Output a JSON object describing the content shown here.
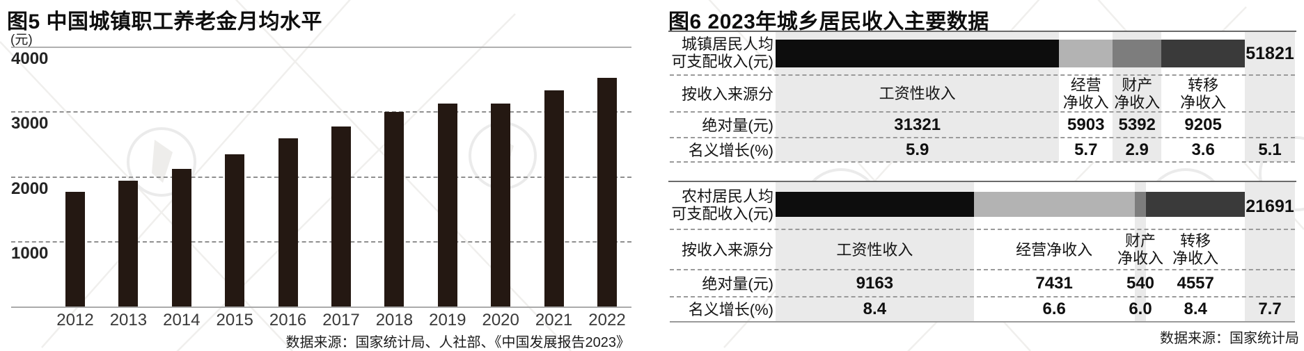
{
  "chart_data": [
    {
      "id": "fig5",
      "type": "bar",
      "title": "图5 中国城镇职工养老金月均水平",
      "unit_label": "(元)",
      "categories": [
        "2012",
        "2013",
        "2014",
        "2015",
        "2016",
        "2017",
        "2018",
        "2019",
        "2020",
        "2021",
        "2022"
      ],
      "values": [
        1770,
        1940,
        2120,
        2350,
        2590,
        2780,
        3000,
        3130,
        3130,
        3330,
        3530
      ],
      "ylim": [
        0,
        4000
      ],
      "yticks": [
        4000,
        3000,
        2000,
        1000
      ],
      "grid": "horizontal dashed, top 4000 line solid",
      "legend": "none",
      "bar_color": "#241812",
      "source": "数据来源：国家统计局、人社部、《中国发展报告2023》"
    },
    {
      "id": "fig6",
      "type": "table",
      "title": "图6 2023年城乡居民收入主要数据",
      "source": "数据来源：国家统计局",
      "blocks": [
        {
          "id": "urban",
          "label_lines": [
            "城镇居民人均",
            "可支配收入(元)"
          ],
          "row_labels": {
            "by_source": "按收入来源分",
            "absolute": "绝对量(元)",
            "nominal_growth": "名义增长(%)"
          },
          "total_value": "51821",
          "total_growth": "5.1",
          "columns": [
            {
              "header_lines": [
                "工资性收入"
              ],
              "absolute": "31321",
              "growth": "5.9",
              "segment_color": "#0d0d0d",
              "band_color": "#eaeaea"
            },
            {
              "header_lines": [
                "经营",
                "净收入"
              ],
              "absolute": "5903",
              "growth": "5.7",
              "segment_color": "#b3b3b3",
              "band_color": "#ffffff"
            },
            {
              "header_lines": [
                "财产",
                "净收入"
              ],
              "absolute": "5392",
              "growth": "2.9",
              "segment_color": "#7d7d7d",
              "band_color": "#eaeaea"
            },
            {
              "header_lines": [
                "转移",
                "净收入"
              ],
              "absolute": "9205",
              "growth": "3.6",
              "segment_color": "#3a3a3a",
              "band_color": "#ffffff"
            }
          ]
        },
        {
          "id": "rural",
          "label_lines": [
            "农村居民人均",
            "可支配收入(元)"
          ],
          "row_labels": {
            "by_source": "按收入来源分",
            "absolute": "绝对量(元)",
            "nominal_growth": "名义增长(%)"
          },
          "total_value": "21691",
          "total_growth": "7.7",
          "columns": [
            {
              "header_lines": [
                "工资性收入"
              ],
              "absolute": "9163",
              "growth": "8.4",
              "segment_color": "#0d0d0d",
              "band_color": "#eaeaea"
            },
            {
              "header_lines": [
                "经营净收入"
              ],
              "absolute": "7431",
              "growth": "6.6",
              "segment_color": "#b3b3b3",
              "band_color": "#ffffff"
            },
            {
              "header_lines": [
                "财产",
                "净收入"
              ],
              "absolute": "540",
              "growth": "6.0",
              "segment_color": "#7d7d7d",
              "band_color": "#eaeaea"
            },
            {
              "header_lines": [
                "转移",
                "净收入"
              ],
              "absolute": "4557",
              "growth": "8.4",
              "segment_color": "#3a3a3a",
              "band_color": "#ffffff"
            }
          ]
        }
      ]
    }
  ]
}
